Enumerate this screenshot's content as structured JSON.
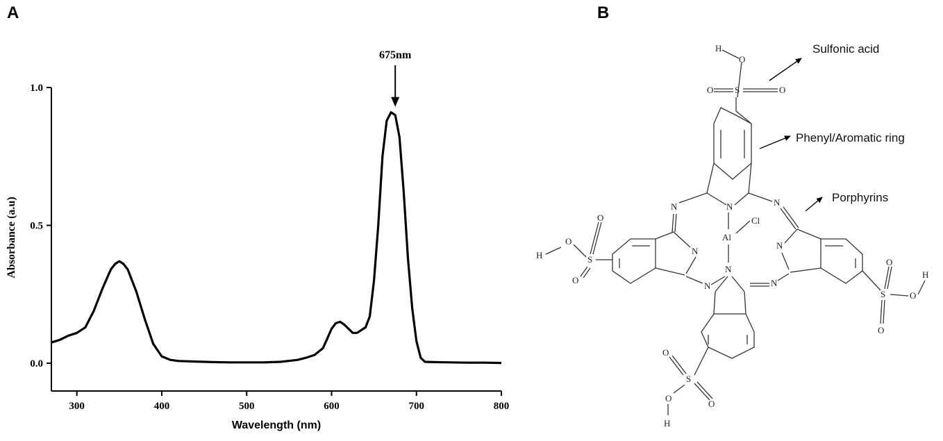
{
  "panels": {
    "a": {
      "letter": "A"
    },
    "b": {
      "letter": "B"
    }
  },
  "chart_data": {
    "type": "line",
    "title": "",
    "xlabel": "Wavelength (nm)",
    "ylabel": "Absorbance (a.u)",
    "xlim": [
      270,
      800
    ],
    "ylim": [
      -0.1,
      1.0
    ],
    "xticks": [
      300,
      400,
      500,
      600,
      700,
      800
    ],
    "yticks": [
      0.0,
      0.5,
      1.0
    ],
    "xtick_labels": [
      "300",
      "400",
      "500",
      "600",
      "700",
      "800"
    ],
    "ytick_labels": [
      "0.0",
      "0.5",
      "1.0"
    ],
    "grid": false,
    "series": [
      {
        "x": [
          270,
          280,
          290,
          300,
          310,
          320,
          330,
          340,
          345,
          350,
          355,
          360,
          370,
          380,
          390,
          400,
          410,
          420,
          440,
          460,
          480,
          500,
          520,
          540,
          560,
          570,
          580,
          590,
          595,
          600,
          605,
          610,
          615,
          620,
          625,
          630,
          640,
          645,
          650,
          655,
          660,
          665,
          670,
          675,
          680,
          685,
          690,
          695,
          700,
          705,
          710,
          720,
          740,
          760,
          780,
          800
        ],
        "y": [
          0.075,
          0.085,
          0.1,
          0.11,
          0.13,
          0.19,
          0.27,
          0.34,
          0.36,
          0.37,
          0.36,
          0.34,
          0.26,
          0.16,
          0.07,
          0.025,
          0.012,
          0.008,
          0.006,
          0.004,
          0.003,
          0.003,
          0.003,
          0.005,
          0.012,
          0.02,
          0.03,
          0.055,
          0.09,
          0.125,
          0.145,
          0.15,
          0.14,
          0.125,
          0.11,
          0.11,
          0.13,
          0.17,
          0.3,
          0.5,
          0.75,
          0.88,
          0.91,
          0.9,
          0.82,
          0.62,
          0.38,
          0.2,
          0.08,
          0.02,
          0.005,
          0.004,
          0.003,
          0.002,
          0.002,
          0.001
        ]
      }
    ],
    "annotations": [
      {
        "text": "675nm",
        "x": 675,
        "y": 0.91
      }
    ]
  },
  "structure": {
    "atoms": {
      "al": "Al",
      "cl": "Cl",
      "n": "N",
      "s": "S",
      "o": "O",
      "h": "H"
    },
    "callouts": [
      {
        "id": "sulfonic",
        "label": "Sulfonic acid"
      },
      {
        "id": "phenyl",
        "label": "Phenyl/Aromatic ring"
      },
      {
        "id": "porphyrins",
        "label": "Porphyrins"
      }
    ]
  },
  "colors": {
    "line": "#000000",
    "axis": "#000000",
    "bond": "#333333"
  }
}
